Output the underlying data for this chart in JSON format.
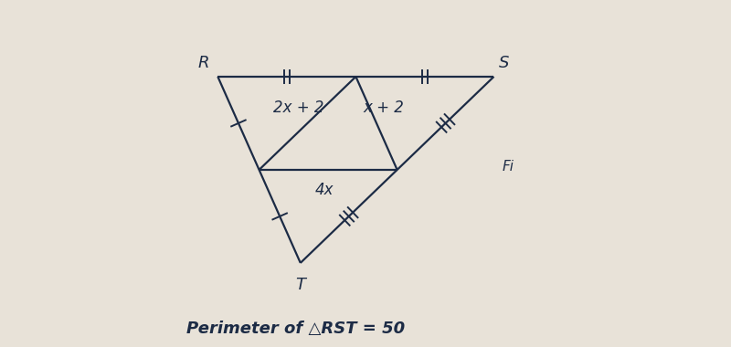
{
  "bg_color": "#e8e2d8",
  "line_color": "#1c2b45",
  "R": [
    0.055,
    0.75
  ],
  "S": [
    0.84,
    0.75
  ],
  "T": [
    0.29,
    0.22
  ],
  "label_2x2": "2x + 2",
  "label_x2": "x + 2",
  "label_4x": "4x",
  "label_R": "R",
  "label_S": "S",
  "label_T": "T",
  "perimeter_text": "Perimeter of △RST = 50",
  "fig_text": "Fi",
  "linewidth": 1.6,
  "fontsize_labels": 12,
  "fontsize_vertex": 13,
  "fontsize_perimeter": 13
}
